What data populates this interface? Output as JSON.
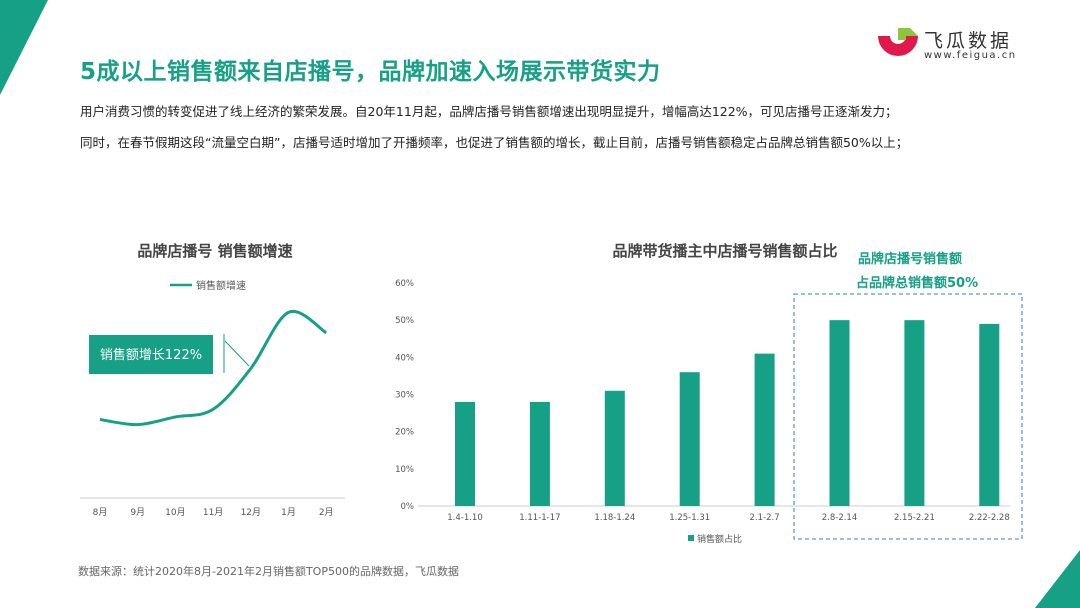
{
  "title": "5成以上销售额来自店播号，品牌加速入场展示带货实力",
  "description": [
    "用户消费习惯的转变促进了线上经济的繁荣发展。自20年11月起，品牌店播号销售额增速出现明显提升，增幅高达122%，可见店播号正逐渐发力；",
    "同时，在春节假期这段“流量空白期”，店播号适时增加了开播频率，也促进了销售额的增长，截止目前，店播号销售额稳定占品牌总销售额50%以上；"
  ],
  "logo": {
    "name": "飞瓜数据",
    "url": "www.feigua.cn"
  },
  "watermark": "飞瓜数据",
  "source": "数据来源：统计2020年8月-2021年2月销售额TOP500的品牌数据，飞瓜数据",
  "colors": {
    "accent": "#16a085",
    "box": "#5b9bd5",
    "logo_red": "#e0194a",
    "logo_green": "#8cc63f"
  },
  "chart_data": [
    {
      "type": "line",
      "title": "品牌店播号 销售额增速",
      "categories": [
        "8月",
        "9月",
        "10月",
        "11月",
        "12月",
        "1月",
        "2月"
      ],
      "series": [
        {
          "name": "销售额增速",
          "values": [
            10,
            8,
            11,
            14,
            30,
            52,
            44
          ]
        }
      ],
      "annotation": "销售额增长122%",
      "grid": false,
      "legend": "top"
    },
    {
      "type": "bar",
      "title": "品牌带货播主中店播号销售额占比",
      "categories": [
        "1.4-1.10",
        "1.11-1-17",
        "1.18-1.24",
        "1.25-1.31",
        "2.1-2.7",
        "2.8-2.14",
        "2.15-2.21",
        "2.22-2.28"
      ],
      "series": [
        {
          "name": "销售额占比",
          "values": [
            28,
            28,
            31,
            36,
            41,
            50,
            50,
            49
          ]
        }
      ],
      "yticks": [
        "0%",
        "10%",
        "20%",
        "30%",
        "40%",
        "50%",
        "60%"
      ],
      "ylim": [
        0,
        60
      ],
      "grid": false,
      "legend": "bottom",
      "highlight": {
        "lines": [
          "品牌店播号销售额",
          "占品牌总销售额50%"
        ],
        "categories": [
          "2.8-2.14",
          "2.15-2.21",
          "2.22-2.28"
        ]
      }
    }
  ]
}
